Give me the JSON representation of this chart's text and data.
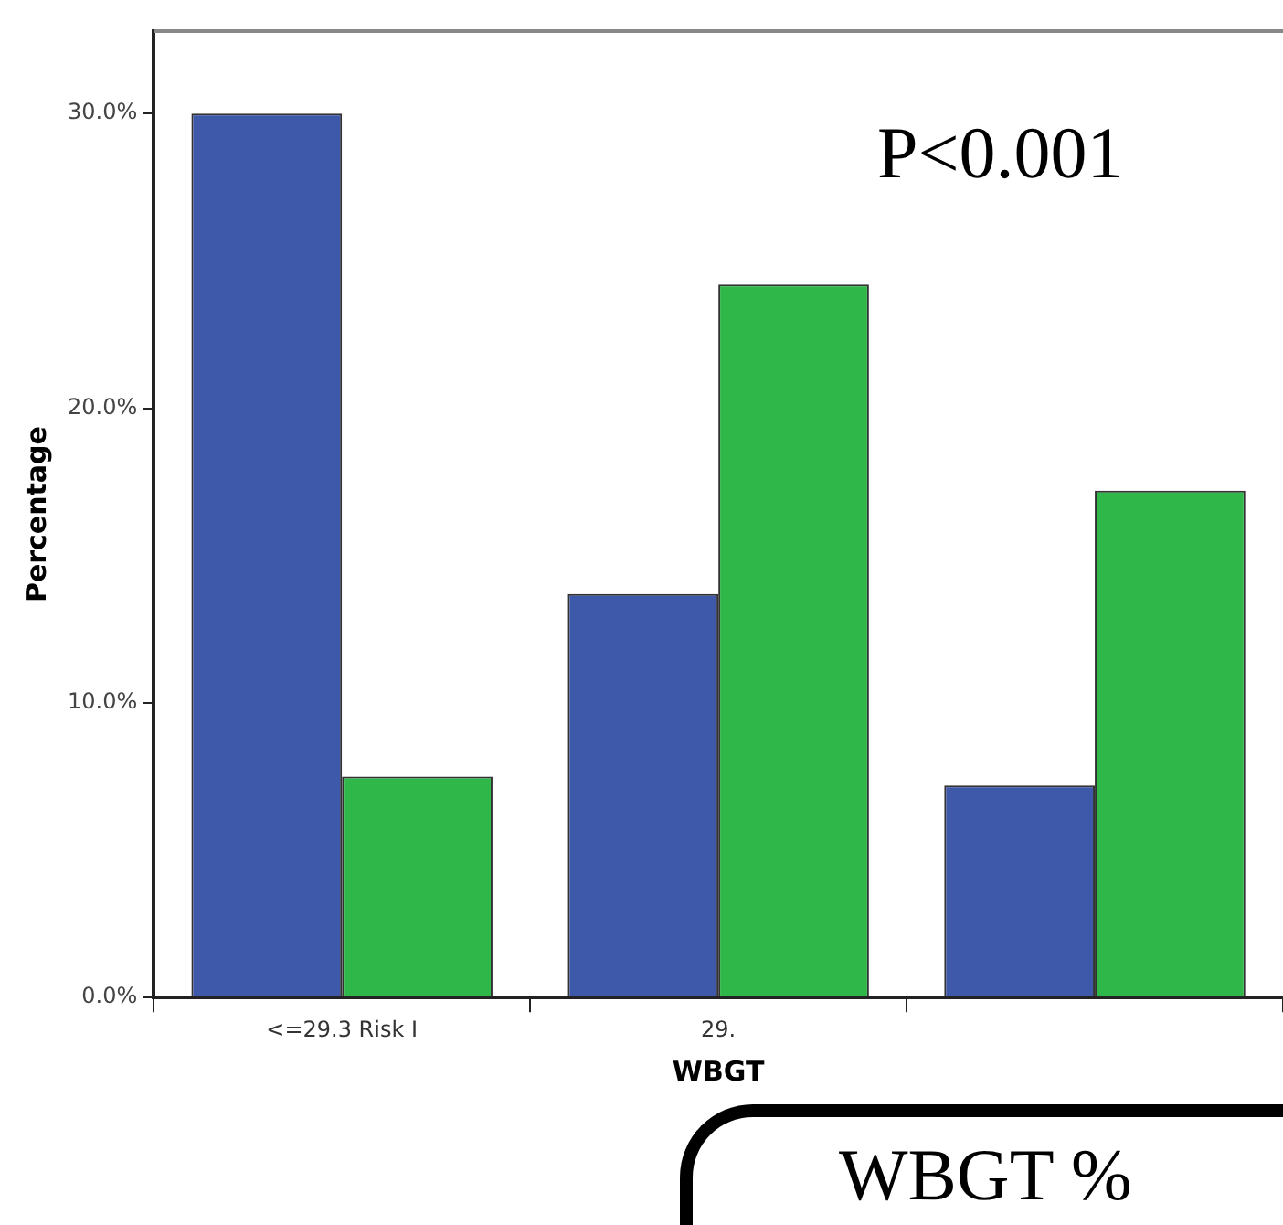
{
  "chart_data": {
    "type": "bar",
    "ylabel": "Percentage",
    "xlabel": "WBGT",
    "categories": [
      "<=29.3 Risk I",
      "29.",
      null
    ],
    "series": [
      {
        "color": "#3f59aa",
        "values": [
          30.0,
          13.7,
          7.2
        ]
      },
      {
        "color": "#30b74a",
        "values": [
          7.5,
          24.2,
          17.2
        ]
      }
    ],
    "ylim": [
      0,
      32.8
    ],
    "yticks": [
      {
        "value": 0,
        "label": "0.0%"
      },
      {
        "value": 10,
        "label": "10.0%"
      },
      {
        "value": 20,
        "label": "20.0%"
      },
      {
        "value": 30,
        "label": "30.0%"
      }
    ],
    "grid": false,
    "legend": false,
    "annotations": [
      "P<0.001",
      "WBGT %"
    ]
  }
}
